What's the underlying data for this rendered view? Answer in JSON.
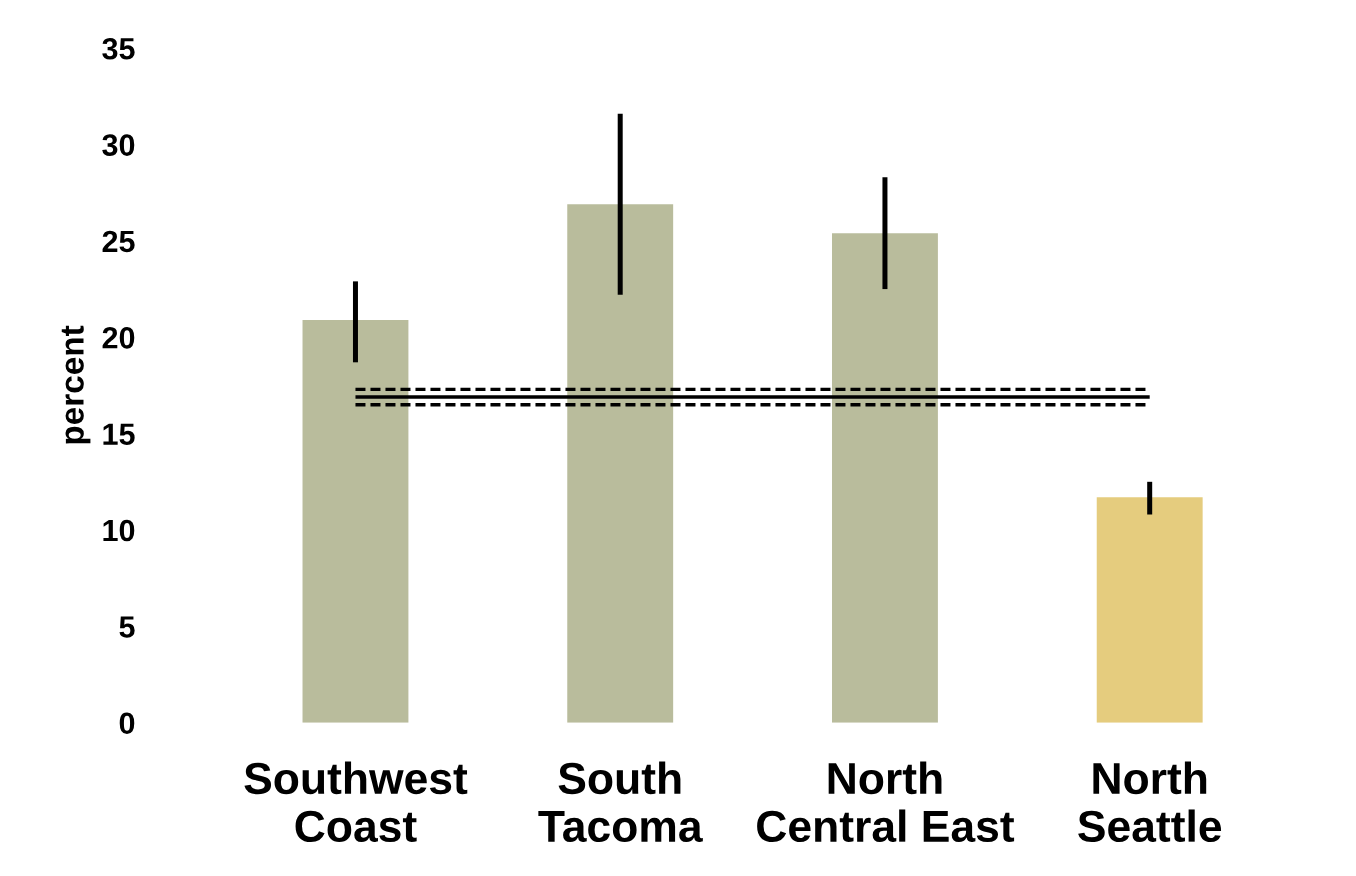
{
  "chart_data": {
    "type": "bar",
    "ylabel": "percent",
    "categories": [
      "Southwest\nCoast",
      "South\nTacoma",
      "North\nCentral East",
      "North\nSeattle"
    ],
    "values": [
      20.9,
      26.9,
      25.4,
      11.7
    ],
    "colors": [
      "#b9bc9c",
      "#b9bc9c",
      "#b9bc9c",
      "#e5cc7e"
    ],
    "errors": [
      [
        18.7,
        22.9
      ],
      [
        22.2,
        31.6
      ],
      [
        22.5,
        28.3
      ],
      [
        10.8,
        12.5
      ]
    ],
    "ylim": [
      0,
      35
    ],
    "yticks": [
      0,
      5,
      10,
      15,
      20,
      25,
      30,
      35
    ],
    "grid": false,
    "ref_lines": [
      {
        "axis": "y",
        "value": 17.3,
        "line_style": "dashed",
        "color": "#000000"
      },
      {
        "axis": "y",
        "value": 16.9,
        "line_style": "solid",
        "color": "#000000"
      },
      {
        "axis": "y",
        "value": 16.5,
        "line_style": "dashed",
        "color": "#000000"
      }
    ]
  }
}
